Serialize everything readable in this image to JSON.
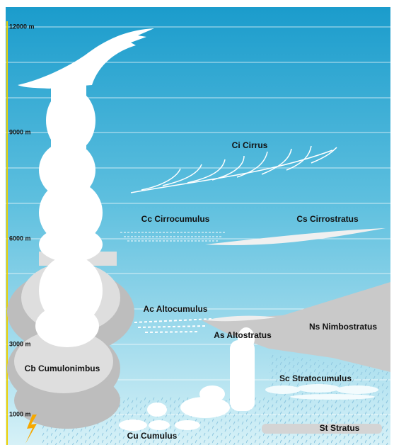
{
  "altitude_labels": [
    "12000 m",
    "9000 m",
    "6000 m",
    "3000 m",
    "1000 m"
  ],
  "cloud_labels": [
    "Ci Cirrus",
    "Cc Cirrocumulus",
    "Cs Cirrostratus",
    "Ac Altocumulus",
    "Ns Nimbostratus",
    "As Altostratus",
    "Cb Cumulonimbus",
    "Sc Stratocumulus",
    "Cu Cumulus",
    "St Stratus"
  ]
}
